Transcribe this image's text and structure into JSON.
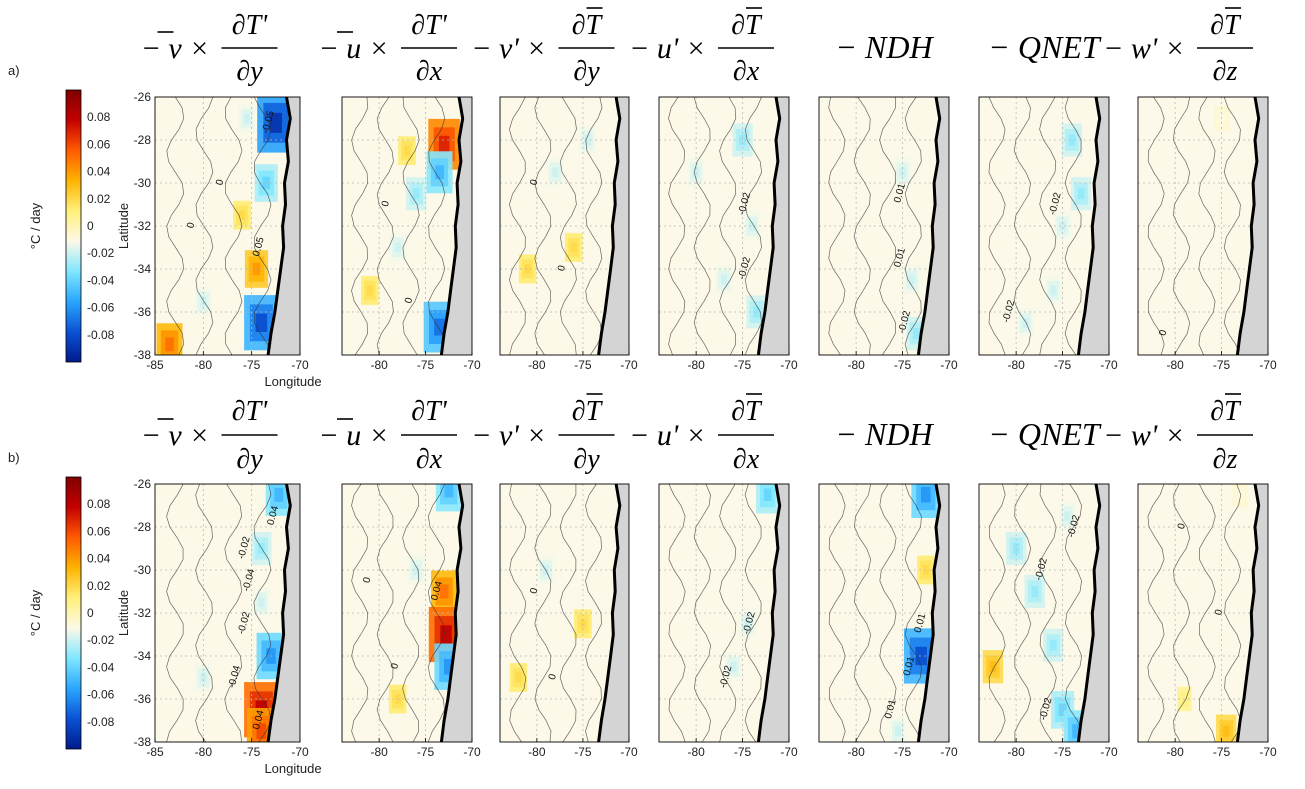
{
  "colors": {
    "background": "#fdf9e8",
    "coast": "#000000",
    "land": "#d4d4d4",
    "grid": "#b8b8b8",
    "contour": "#333333",
    "colormap": [
      "#001a8c",
      "#0a52d4",
      "#2aa6ff",
      "#7fe7ff",
      "#fdf9e8",
      "#fff07a",
      "#ffb300",
      "#ff5a00",
      "#c40000",
      "#800000"
    ]
  },
  "figure": {
    "rows": [
      {
        "label": "a)",
        "lat_label": "Latitude",
        "lon_label": "Longitude"
      },
      {
        "label": "b)",
        "lat_label": "Latitude",
        "lon_label": "Longitude"
      }
    ],
    "colorbar": {
      "unit": "°C / day",
      "ticks": [
        "0.08",
        "0.06",
        "0.04",
        "0.02",
        "0",
        "-0.02",
        "-0.04",
        "-0.06",
        "-0.08"
      ],
      "tick_values": [
        0.08,
        0.06,
        0.04,
        0.02,
        0,
        -0.02,
        -0.04,
        -0.06,
        -0.08
      ],
      "range": [
        -0.1,
        0.1
      ]
    },
    "panel_titles": [
      {
        "prefix": "−",
        "var": "v",
        "bar": true,
        "op": "×",
        "num": "∂T'",
        "num_bar": false,
        "den": "∂y"
      },
      {
        "prefix": "−",
        "var": "u",
        "bar": true,
        "op": "×",
        "num": "∂T'",
        "num_bar": false,
        "den": "∂x"
      },
      {
        "prefix": "−",
        "var": "v'",
        "bar": false,
        "op": "×",
        "num": "∂T",
        "num_bar": true,
        "den": "∂y"
      },
      {
        "prefix": "−",
        "var": "u'",
        "bar": false,
        "op": "×",
        "num": "∂T",
        "num_bar": true,
        "den": "∂x"
      },
      {
        "text": "− NDH"
      },
      {
        "text": "− QNET"
      },
      {
        "prefix": "−",
        "var": "w'",
        "bar": false,
        "op": "×",
        "num": "∂T",
        "num_bar": true,
        "den": "∂z"
      }
    ],
    "y_ticks": [
      "-26",
      "-28",
      "-30",
      "-32",
      "-34",
      "-36",
      "-38"
    ],
    "y_tick_values": [
      -26,
      -28,
      -30,
      -32,
      -34,
      -36,
      -38
    ],
    "x_ticks_first": [
      "-85",
      "-80",
      "-75",
      "-70"
    ],
    "x_tick_values_first": [
      -85,
      -80,
      -75,
      -70
    ],
    "x_ticks_other": [
      "-80",
      "-75",
      "-70"
    ],
    "x_tick_values_other": [
      -80,
      -75,
      -70
    ]
  },
  "chart_data": {
    "type": "heatmap",
    "xlim_first": [
      -85,
      -70
    ],
    "xlim_other": [
      -84,
      -70
    ],
    "ylim": [
      -38,
      -26
    ],
    "grid": true,
    "coast": [
      [
        -71.4,
        -26
      ],
      [
        -71.0,
        -27
      ],
      [
        -71.4,
        -28
      ],
      [
        -71.2,
        -29
      ],
      [
        -71.6,
        -30
      ],
      [
        -71.5,
        -31
      ],
      [
        -71.8,
        -32
      ],
      [
        -71.7,
        -33
      ],
      [
        -72.0,
        -34
      ],
      [
        -72.3,
        -35
      ],
      [
        -72.6,
        -36
      ],
      [
        -73.0,
        -37
      ],
      [
        -73.3,
        -38
      ]
    ],
    "panels": [
      {
        "blobs": [
          {
            "lon": -72.5,
            "lat": -27.2,
            "v": -0.09
          },
          {
            "lon": -73.5,
            "lat": -30.0,
            "v": -0.04
          },
          {
            "lon": -75.5,
            "lat": -27.0,
            "v": -0.02
          },
          {
            "lon": -74.5,
            "lat": -34.0,
            "v": 0.04
          },
          {
            "lon": -74.0,
            "lat": -36.5,
            "v": -0.08
          },
          {
            "lon": -83.5,
            "lat": -37.5,
            "v": 0.05
          },
          {
            "lon": -76.0,
            "lat": -31.5,
            "v": 0.02
          },
          {
            "lon": -80.0,
            "lat": -35.5,
            "v": -0.02
          }
        ],
        "labels": [
          {
            "text": "0.05",
            "lon": -74.0,
            "lat": -33.0
          },
          {
            "text": "-0.05",
            "lon": -73.0,
            "lat": -27.2
          },
          {
            "text": "0",
            "lon": -78.0,
            "lat": -30.0
          },
          {
            "text": "0",
            "lon": -81.0,
            "lat": -32.0
          }
        ]
      },
      {
        "blobs": [
          {
            "lon": -73.0,
            "lat": -28.2,
            "v": 0.07
          },
          {
            "lon": -73.5,
            "lat": -29.5,
            "v": -0.05
          },
          {
            "lon": -76.0,
            "lat": -30.5,
            "v": -0.03
          },
          {
            "lon": -78.0,
            "lat": -33.0,
            "v": -0.02
          },
          {
            "lon": -73.5,
            "lat": -36.7,
            "v": -0.07
          },
          {
            "lon": -81.0,
            "lat": -35.0,
            "v": 0.02
          },
          {
            "lon": -77.0,
            "lat": -28.5,
            "v": 0.02
          }
        ],
        "labels": [
          {
            "text": "0",
            "lon": -79.0,
            "lat": -31.0
          },
          {
            "text": "0",
            "lon": -76.5,
            "lat": -35.5
          }
        ]
      },
      {
        "blobs": [
          {
            "lon": -78.0,
            "lat": -29.5,
            "v": -0.02
          },
          {
            "lon": -76.0,
            "lat": -33.0,
            "v": 0.02
          },
          {
            "lon": -81.0,
            "lat": -34.0,
            "v": 0.02
          },
          {
            "lon": -74.5,
            "lat": -28.0,
            "v": -0.02
          }
        ],
        "labels": [
          {
            "text": "0",
            "lon": -80.0,
            "lat": -30.0
          },
          {
            "text": "0",
            "lon": -77.0,
            "lat": -34.0
          }
        ]
      },
      {
        "blobs": [
          {
            "lon": -75.0,
            "lat": -28.0,
            "v": -0.03
          },
          {
            "lon": -80.0,
            "lat": -29.5,
            "v": -0.02
          },
          {
            "lon": -74.0,
            "lat": -32.0,
            "v": -0.02
          },
          {
            "lon": -77.0,
            "lat": -34.5,
            "v": -0.02
          },
          {
            "lon": -73.5,
            "lat": -36.0,
            "v": -0.03
          }
        ],
        "labels": [
          {
            "text": "-0.02",
            "lon": -74.5,
            "lat": -31.0
          },
          {
            "text": "-0.02",
            "lon": -74.5,
            "lat": -34.0
          }
        ]
      },
      {
        "blobs": [
          {
            "lon": -75.0,
            "lat": -29.5,
            "v": -0.02
          },
          {
            "lon": -74.0,
            "lat": -34.5,
            "v": -0.02
          },
          {
            "lon": -73.5,
            "lat": -37.0,
            "v": -0.03
          }
        ],
        "labels": [
          {
            "text": "0.01",
            "lon": -75.0,
            "lat": -30.5
          },
          {
            "text": "0.01",
            "lon": -75.0,
            "lat": -33.5
          },
          {
            "text": "-0.02",
            "lon": -74.5,
            "lat": -36.5
          }
        ]
      },
      {
        "blobs": [
          {
            "lon": -74.0,
            "lat": -28.0,
            "v": -0.03
          },
          {
            "lon": -73.0,
            "lat": -30.5,
            "v": -0.03
          },
          {
            "lon": -75.0,
            "lat": -32.0,
            "v": -0.02
          },
          {
            "lon": -79.0,
            "lat": -36.5,
            "v": -0.02
          },
          {
            "lon": -76.0,
            "lat": -35.0,
            "v": -0.02
          }
        ],
        "labels": [
          {
            "text": "-0.02",
            "lon": -75.5,
            "lat": -31.0
          },
          {
            "text": "-0.02",
            "lon": -80.5,
            "lat": -36.0
          }
        ]
      },
      {
        "blobs": [
          {
            "lon": -75.0,
            "lat": -27.0,
            "v": -0.01
          }
        ],
        "labels": [
          {
            "text": "0",
            "lon": -81.0,
            "lat": -37.0
          }
        ]
      },
      {
        "blobs": [
          {
            "lon": -72.2,
            "lat": -26.5,
            "v": -0.05
          },
          {
            "lon": -74.0,
            "lat": -29.0,
            "v": -0.03
          },
          {
            "lon": -74.0,
            "lat": -31.5,
            "v": -0.02
          },
          {
            "lon": -73.0,
            "lat": -34.0,
            "v": -0.06
          },
          {
            "lon": -74.0,
            "lat": -36.5,
            "v": 0.08
          },
          {
            "lon": -80.0,
            "lat": -35.0,
            "v": -0.02
          },
          {
            "lon": -74.0,
            "lat": -37.5,
            "v": 0.06
          }
        ],
        "labels": [
          {
            "text": "0.04",
            "lon": -72.5,
            "lat": -27.5
          },
          {
            "text": "-0.02",
            "lon": -75.5,
            "lat": -29.0
          },
          {
            "text": "-0.04",
            "lon": -75.0,
            "lat": -30.5
          },
          {
            "text": "-0.02",
            "lon": -75.5,
            "lat": -32.5
          },
          {
            "text": "-0.04",
            "lon": -76.5,
            "lat": -35.0
          },
          {
            "text": "0.04",
            "lon": -74.0,
            "lat": -37.0
          }
        ]
      },
      {
        "blobs": [
          {
            "lon": -73.0,
            "lat": -31.0,
            "v": 0.05
          },
          {
            "lon": -72.8,
            "lat": -33.0,
            "v": 0.08
          },
          {
            "lon": -72.5,
            "lat": -34.5,
            "v": -0.06
          },
          {
            "lon": -76.0,
            "lat": -30.0,
            "v": -0.02
          },
          {
            "lon": -78.0,
            "lat": -36.0,
            "v": 0.02
          },
          {
            "lon": -72.5,
            "lat": -26.3,
            "v": -0.05
          }
        ],
        "labels": [
          {
            "text": "0.04",
            "lon": -73.5,
            "lat": -31.0
          },
          {
            "text": "0",
            "lon": -81.0,
            "lat": -30.5
          },
          {
            "text": "0",
            "lon": -78.0,
            "lat": -34.5
          }
        ]
      },
      {
        "blobs": [
          {
            "lon": -79.0,
            "lat": -30.0,
            "v": -0.02
          },
          {
            "lon": -75.0,
            "lat": -32.5,
            "v": 0.02
          },
          {
            "lon": -82.0,
            "lat": -35.0,
            "v": 0.02
          }
        ],
        "labels": [
          {
            "text": "0",
            "lon": -80.0,
            "lat": -31.0
          },
          {
            "text": "0",
            "lon": -78.0,
            "lat": -35.0
          }
        ]
      },
      {
        "blobs": [
          {
            "lon": -72.3,
            "lat": -26.5,
            "v": -0.04
          },
          {
            "lon": -74.5,
            "lat": -32.5,
            "v": -0.02
          },
          {
            "lon": -76.0,
            "lat": -34.5,
            "v": -0.02
          }
        ],
        "labels": [
          {
            "text": "-0.02",
            "lon": -74.0,
            "lat": -32.5
          },
          {
            "text": "-0.02",
            "lon": -76.5,
            "lat": -35.0
          }
        ]
      },
      {
        "blobs": [
          {
            "lon": -72.5,
            "lat": -26.5,
            "v": -0.06
          },
          {
            "lon": -73.0,
            "lat": -34.0,
            "v": -0.08
          },
          {
            "lon": -72.5,
            "lat": -30.0,
            "v": 0.02
          },
          {
            "lon": -75.5,
            "lat": -37.5,
            "v": -0.02
          }
        ],
        "labels": [
          {
            "text": "0.01",
            "lon": -72.8,
            "lat": -32.5
          },
          {
            "text": "0.01",
            "lon": -74.0,
            "lat": -34.5
          },
          {
            "text": "0.01",
            "lon": -76.0,
            "lat": -36.5
          }
        ]
      },
      {
        "blobs": [
          {
            "lon": -80.0,
            "lat": -29.0,
            "v": -0.03
          },
          {
            "lon": -78.0,
            "lat": -31.0,
            "v": -0.03
          },
          {
            "lon": -76.0,
            "lat": -33.5,
            "v": -0.03
          },
          {
            "lon": -75.0,
            "lat": -36.5,
            "v": -0.04
          },
          {
            "lon": -74.5,
            "lat": -27.5,
            "v": -0.02
          },
          {
            "lon": -82.5,
            "lat": -34.5,
            "v": 0.03
          },
          {
            "lon": -73.5,
            "lat": -37.5,
            "v": -0.05
          }
        ],
        "labels": [
          {
            "text": "-0.02",
            "lon": -73.5,
            "lat": -28.0
          },
          {
            "text": "-0.02",
            "lon": -77.0,
            "lat": -30.0
          },
          {
            "text": "-0.02",
            "lon": -76.5,
            "lat": -36.5
          }
        ]
      },
      {
        "blobs": [
          {
            "lon": -74.5,
            "lat": -37.5,
            "v": 0.03
          },
          {
            "lon": -79.0,
            "lat": -36.0,
            "v": 0.01
          },
          {
            "lon": -73.0,
            "lat": -26.5,
            "v": -0.01
          }
        ],
        "labels": [
          {
            "text": "0",
            "lon": -79.0,
            "lat": -28.0
          },
          {
            "text": "0",
            "lon": -75.0,
            "lat": -32.0
          }
        ]
      }
    ]
  }
}
